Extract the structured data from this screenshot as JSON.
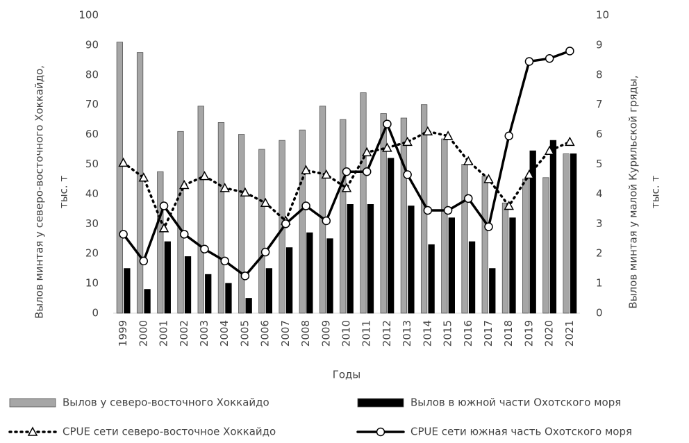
{
  "chart_data": {
    "type": "bar-line",
    "categories": [
      "1999",
      "2000",
      "2001",
      "2002",
      "2003",
      "2004",
      "2005",
      "2006",
      "2007",
      "2008",
      "2009",
      "2010",
      "2011",
      "2012",
      "2013",
      "2014",
      "2015",
      "2016",
      "2017",
      "2018",
      "2019",
      "2020",
      "2021"
    ],
    "xlabel": "Годы",
    "ylabel": [
      "Вылов минтая у северо-восточного  Хоккайдо,",
      "тыс. т"
    ],
    "y2label": [
      "Вылов минтая у малой Курильской гряды,",
      "тыс. т"
    ],
    "ylim": [
      0,
      100
    ],
    "yticks": [
      0,
      10,
      20,
      30,
      40,
      50,
      60,
      70,
      80,
      90,
      100
    ],
    "y2lim": [
      0,
      10
    ],
    "y2ticks": [
      0,
      1,
      2,
      3,
      4,
      5,
      6,
      7,
      8,
      9,
      10
    ],
    "series": [
      {
        "name": "Вылов у северо-восточного Хоккайдо",
        "kind": "bar",
        "color": "#a6a6a6",
        "axis": "y",
        "values": [
          91,
          87.5,
          47.5,
          61,
          69.5,
          64,
          60,
          55,
          58,
          61.5,
          69.5,
          65,
          74,
          67,
          65.5,
          70,
          58.5,
          50,
          46,
          37,
          45,
          45.5,
          53.5
        ]
      },
      {
        "name": "Вылов в южной части Охотского моря",
        "kind": "bar",
        "color": "#000000",
        "axis": "y2",
        "values": [
          1.5,
          0.8,
          2.4,
          1.9,
          1.3,
          1.0,
          0.5,
          1.5,
          2.2,
          2.7,
          2.5,
          3.65,
          3.65,
          5.2,
          3.6,
          2.3,
          3.2,
          2.4,
          1.5,
          3.2,
          5.45,
          5.8,
          5.35
        ]
      },
      {
        "name": "CPUE сети северо-восточное Хоккайдо",
        "kind": "line",
        "dash": "dotted",
        "marker": "triangle",
        "color": "#000000",
        "axis": "y2",
        "values": [
          5.05,
          4.55,
          2.85,
          4.3,
          4.6,
          4.2,
          4.05,
          3.7,
          3.1,
          4.8,
          4.65,
          4.2,
          5.4,
          5.55,
          5.75,
          6.1,
          5.95,
          5.1,
          4.5,
          3.6,
          4.65,
          5.45,
          5.75
        ]
      },
      {
        "name": "CPUE сети южная часть Охотского моря",
        "kind": "line",
        "dash": "solid",
        "marker": "circle",
        "color": "#000000",
        "axis": "y2",
        "values": [
          2.65,
          1.75,
          3.6,
          2.65,
          2.15,
          1.75,
          1.25,
          2.05,
          3.0,
          3.6,
          3.1,
          4.75,
          4.75,
          6.35,
          4.65,
          3.45,
          3.45,
          3.85,
          2.9,
          5.95,
          8.45,
          8.55,
          8.8
        ]
      }
    ]
  }
}
